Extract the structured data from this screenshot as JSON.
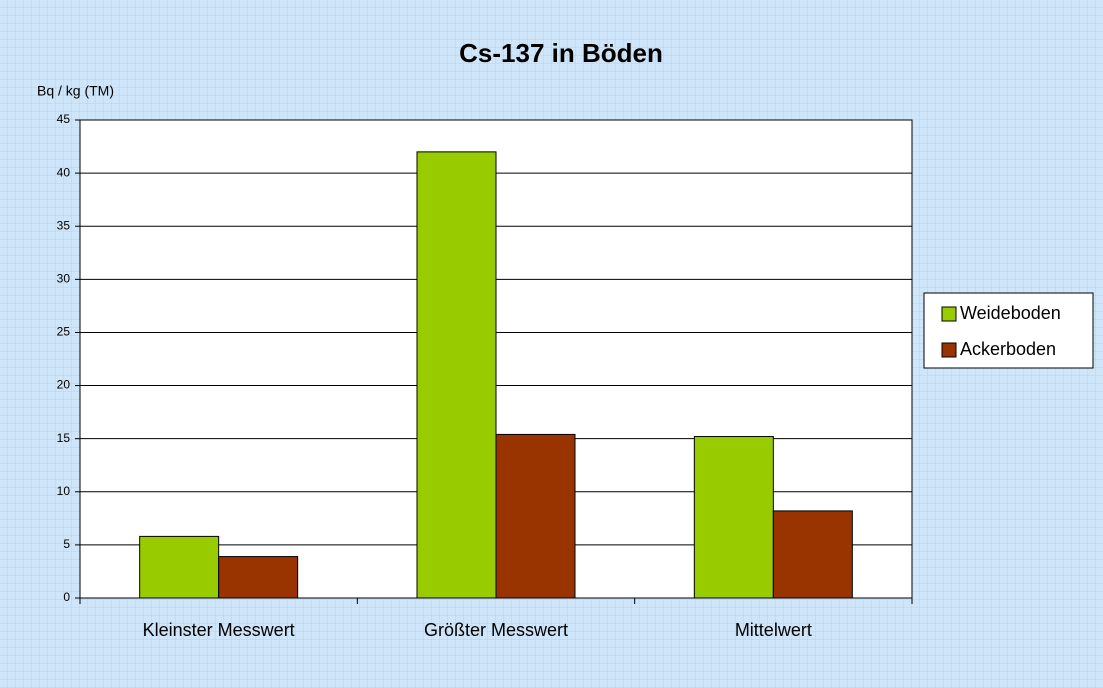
{
  "chart_data": {
    "type": "bar",
    "title": "Cs-137 in Böden",
    "y_label": "Bq / kg (TM)",
    "categories": [
      "Kleinster Messwert",
      "Größter Messwert",
      "Mittelwert"
    ],
    "series": [
      {
        "name": "Weideboden",
        "color": "#99cc00",
        "values": [
          5.8,
          42,
          15.2
        ]
      },
      {
        "name": "Ackerboden",
        "color": "#993300",
        "values": [
          3.9,
          15.4,
          8.2
        ]
      }
    ],
    "ylim": [
      0,
      45
    ],
    "yticks": [
      0,
      5,
      10,
      15,
      20,
      25,
      30,
      35,
      40,
      45
    ],
    "grid": true,
    "legend": "right"
  }
}
